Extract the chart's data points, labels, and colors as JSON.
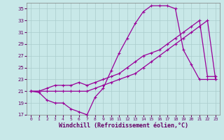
{
  "title": "",
  "xlabel": "Windchill (Refroidissement éolien,°C)",
  "ylabel": "",
  "bg_color": "#c8e8e8",
  "grid_color": "#aacccc",
  "line_color": "#990099",
  "xlim": [
    -0.5,
    23.5
  ],
  "ylim": [
    17,
    36
  ],
  "xticks": [
    0,
    1,
    2,
    3,
    4,
    5,
    6,
    7,
    8,
    9,
    10,
    11,
    12,
    13,
    14,
    15,
    16,
    17,
    18,
    19,
    20,
    21,
    22,
    23
  ],
  "yticks": [
    17,
    19,
    21,
    23,
    25,
    27,
    29,
    31,
    33,
    35
  ],
  "line1_x": [
    0,
    1,
    2,
    3,
    4,
    5,
    6,
    7,
    8,
    9,
    10,
    11,
    12,
    13,
    14,
    15,
    16,
    17,
    18,
    19,
    20,
    21,
    22,
    23
  ],
  "line1_y": [
    21,
    20.8,
    19.5,
    19,
    19,
    18,
    17.5,
    17,
    20,
    21.5,
    24.5,
    27.5,
    30,
    32.5,
    34.5,
    35.5,
    35.5,
    35.5,
    35,
    28,
    25.5,
    23,
    23,
    23
  ],
  "line2_x": [
    0,
    1,
    2,
    3,
    4,
    5,
    6,
    7,
    8,
    9,
    10,
    11,
    12,
    13,
    14,
    15,
    16,
    17,
    18,
    19,
    20,
    21,
    22,
    23
  ],
  "line2_y": [
    21,
    21,
    21,
    21,
    21,
    21,
    21,
    21,
    21.5,
    22,
    22.5,
    23,
    23.5,
    24,
    25,
    26,
    27,
    28,
    29,
    30,
    31,
    32,
    33,
    23
  ],
  "line3_x": [
    0,
    1,
    2,
    3,
    4,
    5,
    6,
    7,
    8,
    9,
    10,
    11,
    12,
    13,
    14,
    15,
    16,
    17,
    18,
    19,
    20,
    21,
    22,
    23
  ],
  "line3_y": [
    21,
    21,
    21.5,
    22,
    22,
    22,
    22.5,
    22,
    22.5,
    23,
    23.5,
    24,
    25,
    26,
    27,
    27.5,
    28,
    29,
    30,
    31,
    32,
    33,
    23.5,
    23.5
  ],
  "marker": "+",
  "markersize": 3,
  "linewidth": 0.9,
  "tick_color": "#660066",
  "xlabel_color": "#660066",
  "xlabel_fontsize": 6,
  "tick_fontsize": 4.5
}
